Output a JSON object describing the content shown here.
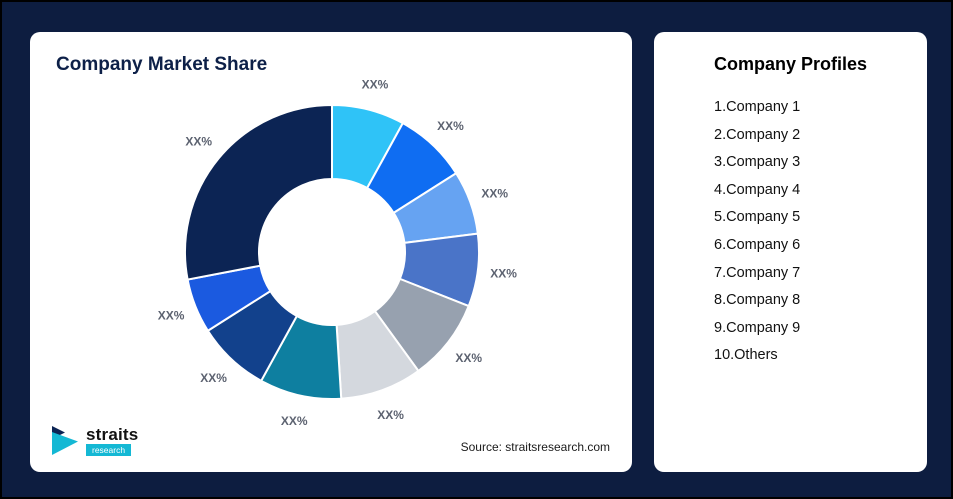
{
  "page": {
    "background_color": "#0d1d40"
  },
  "left_card": {
    "title": "Company Market Share",
    "source": "Source: straitsresearch.com",
    "logo": {
      "name": "straits",
      "sub": "research",
      "accent_color": "#14b8d4"
    }
  },
  "right_card": {
    "title": "Company Profiles",
    "items": [
      "1.Company 1",
      "2.Company 2",
      "3.Company 3",
      "4.Company 4",
      "5.Company 5",
      "6.Company 6",
      "7.Company 7",
      "8.Company 8",
      "9.Company 9",
      "10.Others"
    ]
  },
  "chart_data": {
    "type": "pie",
    "subtype": "donut",
    "title": "Company Market Share",
    "start_angle_deg": 0,
    "direction": "clockwise",
    "inner_radius_ratio": 0.5,
    "note": "All slice data labels are placeholder text XX%; values below are estimated from arc angles",
    "slices": [
      {
        "label": "XX%",
        "value": 8,
        "color": "#2fc3f7"
      },
      {
        "label": "XX%",
        "value": 8,
        "color": "#0f6df2"
      },
      {
        "label": "XX%",
        "value": 7,
        "color": "#66a3f2"
      },
      {
        "label": "XX%",
        "value": 8,
        "color": "#4a74c8"
      },
      {
        "label": "XX%",
        "value": 9,
        "color": "#97a1af"
      },
      {
        "label": "XX%",
        "value": 9,
        "color": "#d4d8de"
      },
      {
        "label": "XX%",
        "value": 9,
        "color": "#0e7fa0"
      },
      {
        "label": "XX%",
        "value": 8,
        "color": "#12418c"
      },
      {
        "label": "XX%",
        "value": 6,
        "color": "#1b5ae0"
      },
      {
        "label": "XX%",
        "value": 28,
        "color": "#0c2454"
      }
    ]
  }
}
